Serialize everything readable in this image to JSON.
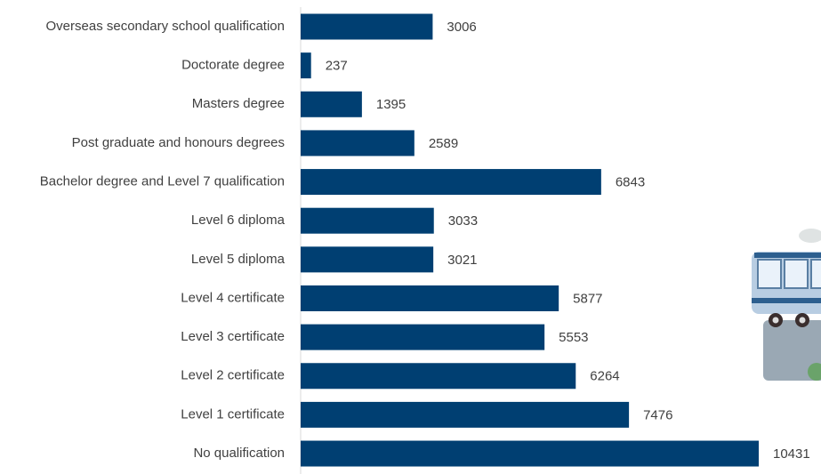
{
  "chart_data": {
    "type": "bar",
    "orientation": "horizontal",
    "categories": [
      "Overseas secondary school qualification",
      "Doctorate degree",
      "Masters degree",
      "Post graduate and honours degrees",
      "Bachelor degree and Level 7 qualification",
      "Level 6 diploma",
      "Level 5 diploma",
      "Level 4 certificate",
      "Level 3 certificate",
      "Level 2 certificate",
      "Level 1 certificate",
      "No qualification"
    ],
    "values": [
      3006,
      237,
      1395,
      2589,
      6843,
      3033,
      3021,
      5877,
      5553,
      6264,
      7476,
      10431
    ],
    "color": "#003f72"
  }
}
